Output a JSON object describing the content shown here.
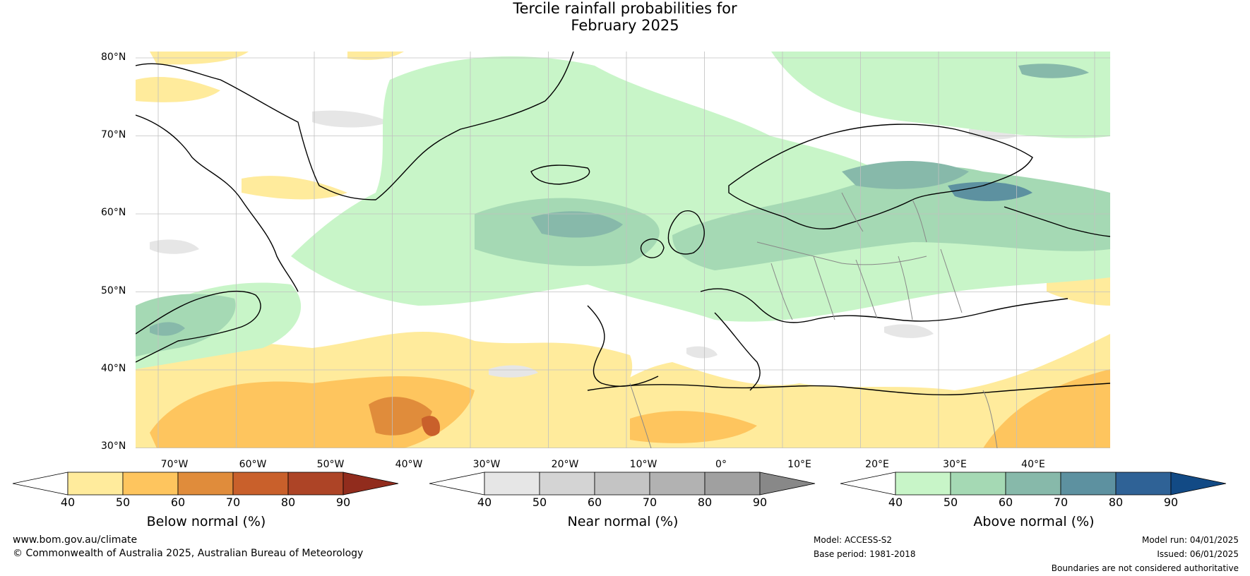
{
  "title": {
    "line1": "Tercile rainfall probabilities for",
    "line2": "February 2025"
  },
  "map": {
    "lat_labels": [
      "80°N",
      "70°N",
      "60°N",
      "50°N",
      "40°N",
      "30°N"
    ],
    "lon_labels": [
      "70°W",
      "60°W",
      "50°W",
      "40°W",
      "30°W",
      "20°W",
      "10°W",
      "0°",
      "10°E",
      "20°E",
      "30°E",
      "40°E"
    ],
    "colors": {
      "coast": "#000000",
      "border": "#888888",
      "grid": "#c0c0c0"
    }
  },
  "legends": [
    {
      "title": "Below normal (%)",
      "ticks": [
        "40",
        "50",
        "60",
        "70",
        "80",
        "90"
      ],
      "colors": [
        "#ffffff",
        "#ffeb9c",
        "#fec55e",
        "#e08c3b",
        "#c9602b",
        "#ad4426",
        "#912c1d"
      ]
    },
    {
      "title": "Near normal (%)",
      "ticks": [
        "40",
        "50",
        "60",
        "70",
        "80",
        "90"
      ],
      "colors": [
        "#ffffff",
        "#e6e6e6",
        "#d4d4d4",
        "#c4c4c4",
        "#b2b2b2",
        "#a0a0a0",
        "#888888"
      ]
    },
    {
      "title": "Above normal (%)",
      "ticks": [
        "40",
        "50",
        "60",
        "70",
        "80",
        "90"
      ],
      "colors": [
        "#ffffff",
        "#c8f5c8",
        "#a5d9b4",
        "#87b9aa",
        "#5d91a0",
        "#2f6296",
        "#124a85"
      ]
    }
  ],
  "footer": {
    "website": "www.bom.gov.au/climate",
    "copyright": "© Commonwealth of Australia 2025, Australian Bureau of Meteorology",
    "model": "Model: ACCESS-S2",
    "base_period": "Base period: 1981-2018",
    "model_run": "Model run: 04/01/2025",
    "issued": "Issued: 06/01/2025",
    "disclaimer": "Boundaries are not considered authoritative"
  }
}
